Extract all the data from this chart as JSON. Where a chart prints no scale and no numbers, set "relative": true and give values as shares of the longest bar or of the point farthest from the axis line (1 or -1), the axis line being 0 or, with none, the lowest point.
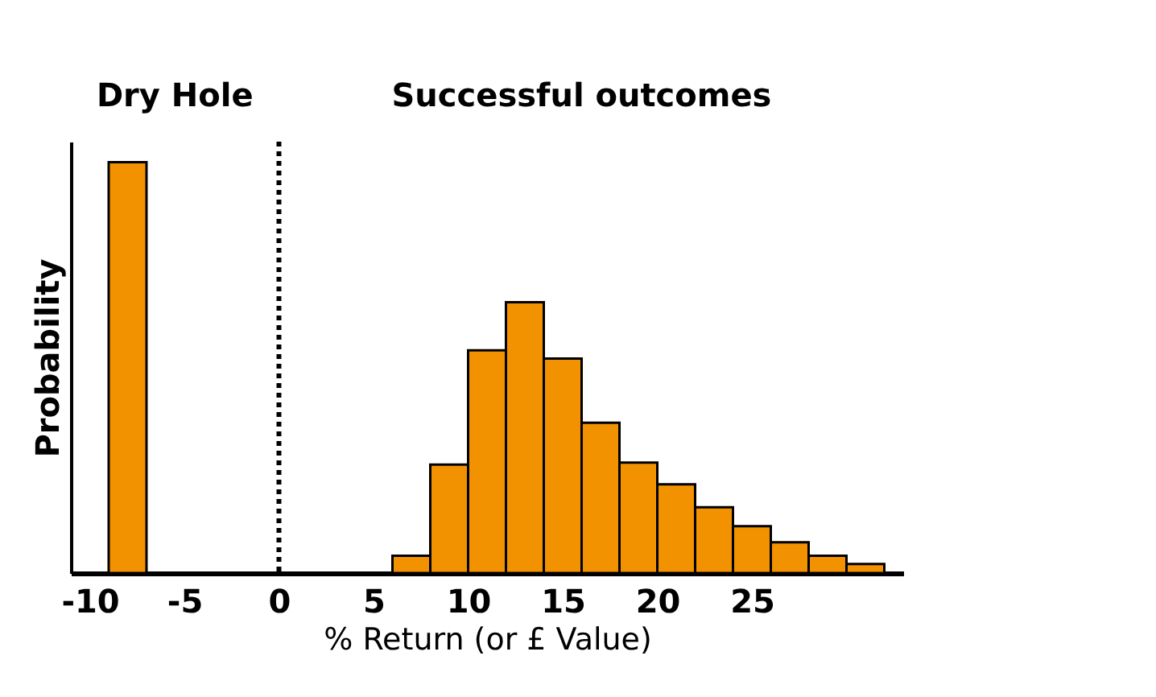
{
  "chart_data": {
    "type": "bar",
    "relative": true,
    "xlabel": "% Return (or £ Value)",
    "ylabel": "Probability",
    "annotations": [
      "Dry Hole",
      "Successful outcomes"
    ],
    "x": [
      -8,
      7,
      9,
      11,
      13,
      15,
      17,
      19,
      21,
      23,
      25,
      27,
      29,
      31
    ],
    "values": [
      1.0,
      0.042,
      0.264,
      0.542,
      0.659,
      0.522,
      0.366,
      0.269,
      0.216,
      0.16,
      0.114,
      0.075,
      0.042,
      0.022
    ],
    "color": "#f39200",
    "xlim": [
      -11,
      33
    ],
    "xticks": [
      -10,
      -5,
      0,
      5,
      10,
      15,
      20,
      25
    ],
    "ref_lines": [
      {
        "axis": "x",
        "value": 0,
        "line_style": "dotted",
        "color": "#000000"
      }
    ],
    "grid": false
  }
}
